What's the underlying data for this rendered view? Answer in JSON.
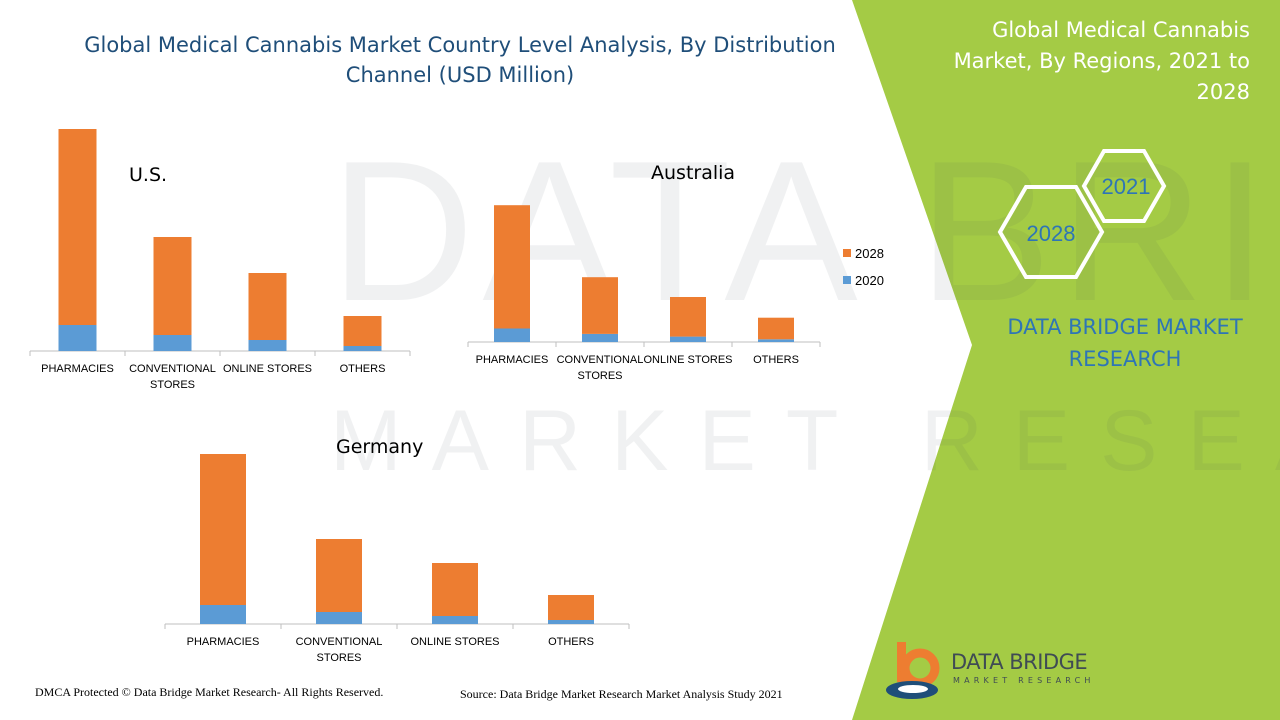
{
  "title_line1": "Global  Medical Cannabis Market Country Level Analysis, By Distribution",
  "title_line2": "Channel (USD Million)",
  "right_title_lines": [
    "Global Medical Cannabis",
    "Market, By Regions, 2021 to",
    "2028"
  ],
  "hexagons": {
    "upper": "2021",
    "lower": "2028"
  },
  "brand_lines": [
    "DATA BRIDGE MARKET",
    "RESEARCH"
  ],
  "footer_left": "DMCA Protected © Data Bridge Market Research- All Rights Reserved.",
  "footer_right": "Source: Data Bridge Market Research Market Analysis Study 2021",
  "logo": {
    "name": "DATA BRIDGE",
    "sub": "MARKET RESEARCH"
  },
  "watermark": {
    "line1": "DATA BRIDGE",
    "line2": "MARKET RESEARCH"
  },
  "colors": {
    "series_2028": "#ed7d31",
    "series_2020": "#5b9bd5",
    "green": "#a4cb45",
    "title_blue": "#1f4e79",
    "brand_blue": "#2e75b6"
  },
  "chart_data": [
    {
      "type": "bar",
      "stacked": true,
      "title": "U.S.",
      "categories": [
        "PHARMACIES",
        "CONVENTIONAL STORES",
        "ONLINE STORES",
        "OTHERS"
      ],
      "series": [
        {
          "name": "2020",
          "values": [
            26,
            16,
            11,
            5
          ]
        },
        {
          "name": "2028",
          "values": [
            196,
            98,
            67,
            30
          ]
        }
      ],
      "legend": "none"
    },
    {
      "type": "bar",
      "stacked": true,
      "title": "Australia",
      "categories": [
        "PHARMACIES",
        "CONVENTIONAL STORES",
        "ONLINE STORES",
        "OTHERS"
      ],
      "series": [
        {
          "name": "2020",
          "values": [
            15,
            9,
            6,
            3
          ]
        },
        {
          "name": "2028",
          "values": [
            137,
            63,
            44,
            24
          ]
        }
      ],
      "legend": "right"
    },
    {
      "type": "bar",
      "stacked": true,
      "title": "Germany",
      "categories": [
        "PHARMACIES",
        "CONVENTIONAL STORES",
        "ONLINE STORES",
        "OTHERS"
      ],
      "series": [
        {
          "name": "2020",
          "values": [
            19,
            12,
            8,
            4
          ]
        },
        {
          "name": "2028",
          "values": [
            151,
            73,
            53,
            25
          ]
        }
      ],
      "legend": "none"
    }
  ]
}
